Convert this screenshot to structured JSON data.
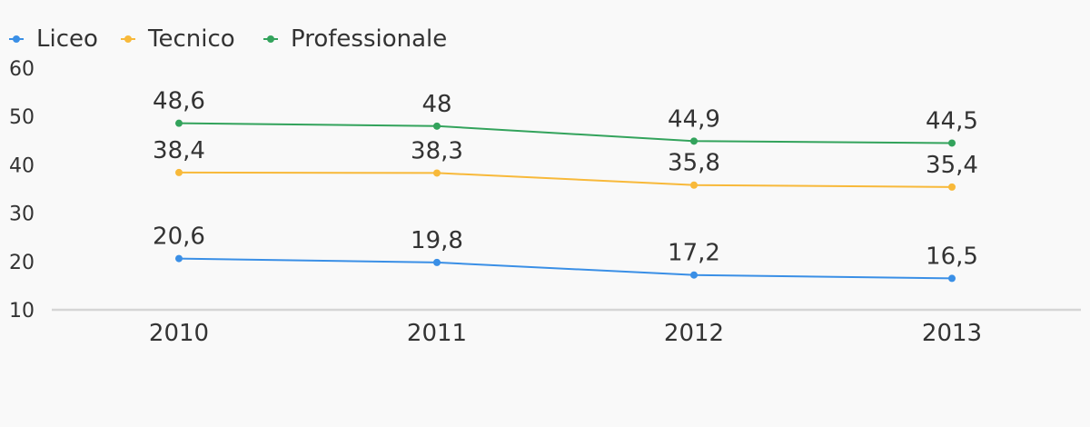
{
  "chart_data": {
    "type": "line",
    "title": "",
    "xlabel": "",
    "ylabel": "",
    "categories": [
      "2010",
      "2011",
      "2012",
      "2013"
    ],
    "ylim": [
      10,
      60
    ],
    "yticks": [
      "10",
      "20",
      "30",
      "40",
      "50",
      "60"
    ],
    "grid": false,
    "legend_position": "top-left",
    "series": [
      {
        "name": "Liceo",
        "color": "#3a8fe6",
        "values": [
          20.6,
          19.8,
          17.2,
          16.5
        ],
        "labels": [
          "20,6",
          "19,8",
          "17,2",
          "16,5"
        ]
      },
      {
        "name": "Tecnico",
        "color": "#f8b93a",
        "values": [
          38.4,
          38.3,
          35.8,
          35.4
        ],
        "labels": [
          "38,4",
          "38,3",
          "35,8",
          "35,4"
        ]
      },
      {
        "name": "Professionale",
        "color": "#33a35c",
        "values": [
          48.6,
          48,
          44.9,
          44.5
        ],
        "labels": [
          "48,6",
          "48",
          "44,9",
          "44,5"
        ]
      }
    ]
  }
}
